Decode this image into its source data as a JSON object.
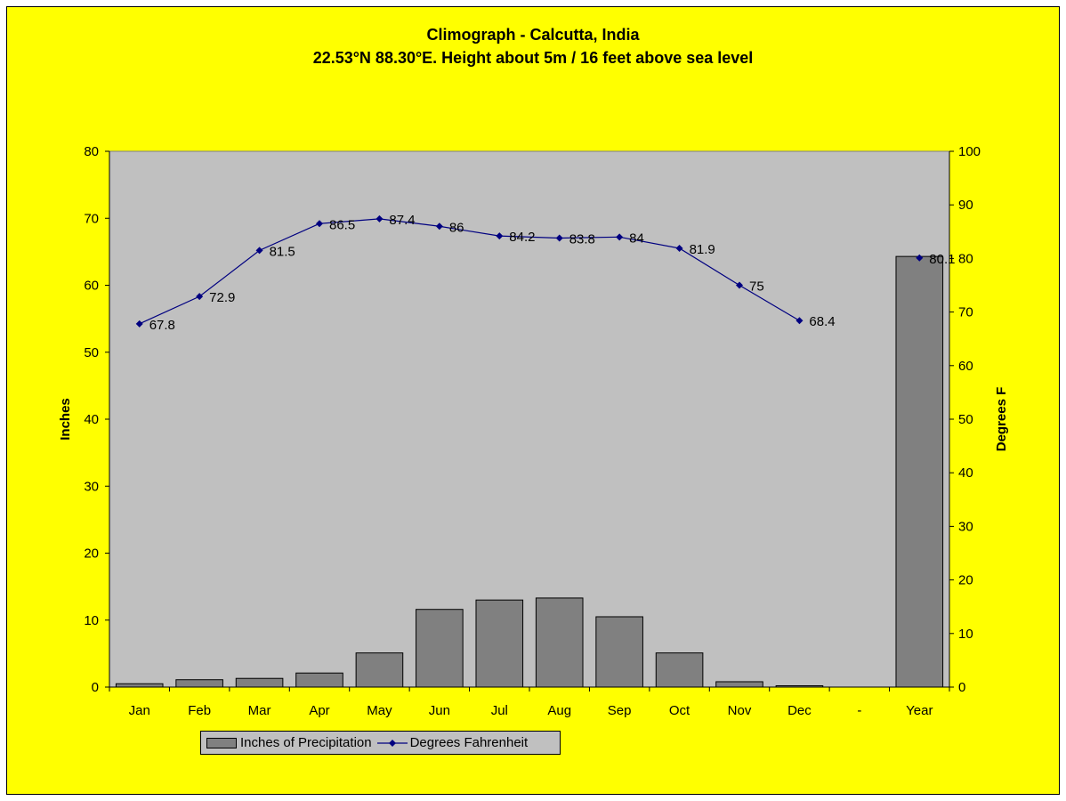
{
  "chart_data": {
    "type": "bar+line",
    "title": "Climograph - Calcutta, India",
    "subtitle": "22.53°N 88.30°E. Height about 5m / 16 feet above sea level",
    "categories": [
      "Jan",
      "Feb",
      "Mar",
      "Apr",
      "May",
      "Jun",
      "Jul",
      "Aug",
      "Sep",
      "Oct",
      "Nov",
      "Dec",
      "-",
      "Year"
    ],
    "y_left": {
      "label": "Inches",
      "min": 0,
      "max": 80,
      "ticks": [
        0,
        10,
        20,
        30,
        40,
        50,
        60,
        70,
        80
      ]
    },
    "y_right": {
      "label": "Degrees F",
      "min": 0,
      "max": 100,
      "ticks": [
        0,
        10,
        20,
        30,
        40,
        50,
        60,
        70,
        80,
        90,
        100
      ]
    },
    "series": [
      {
        "name": "Inches of Precipitation",
        "type": "bar",
        "axis": "left",
        "values": [
          0.5,
          1.1,
          1.3,
          2.1,
          5.1,
          11.6,
          13.0,
          13.3,
          10.5,
          5.1,
          0.8,
          0.2,
          null,
          64.3
        ]
      },
      {
        "name": "Degrees Fahrenheit",
        "type": "line",
        "axis": "right",
        "values": [
          67.8,
          72.9,
          81.5,
          86.5,
          87.4,
          86,
          84.2,
          83.8,
          84,
          81.9,
          75,
          68.4,
          null,
          80.1
        ],
        "labels": [
          "67.8",
          "72.9",
          "81.5",
          "86.5",
          "87.4",
          "86",
          "84.2",
          "83.8",
          "84",
          "81.9",
          "75",
          "68.4",
          null,
          "80.1"
        ]
      }
    ],
    "plot_background": "#c0c0c0",
    "page_background": "#ffff00",
    "bar_color": "#808080",
    "line_color": "#000080",
    "legend_position": "bottom-left"
  }
}
